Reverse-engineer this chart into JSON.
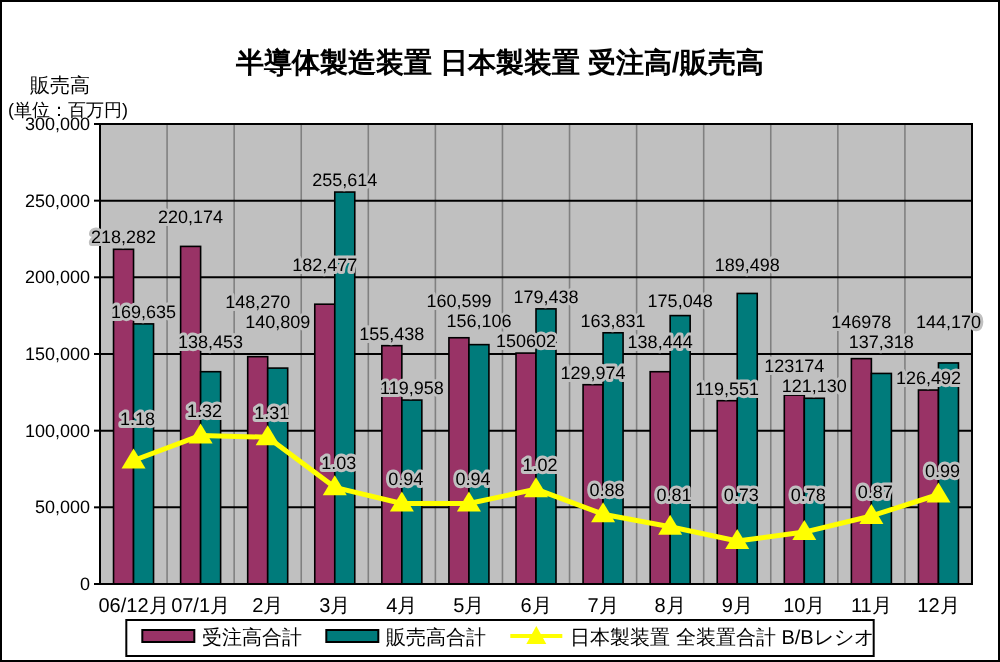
{
  "chart_data": {
    "type": "bar",
    "title": "半導体製造装置 日本製装置 受注高/販売高",
    "ylabel": "販売高",
    "annotations": [
      "(単位：百万円)"
    ],
    "categories": [
      "06/12月",
      "07/1月",
      "2月",
      "3月",
      "4月",
      "5月",
      "6月",
      "7月",
      "8月",
      "9月",
      "10月",
      "11月",
      "12月"
    ],
    "series": [
      {
        "name": "受注高合計",
        "color": "#993366",
        "values": [
          218282,
          220174,
          148270,
          182477,
          155438,
          160599,
          150602,
          129974,
          138444,
          119551,
          123174,
          146978,
          126492
        ],
        "value_labels": [
          "218,282",
          "220,174",
          "148,270",
          "182,477",
          "155,438",
          "160,599",
          "150602",
          "129,974",
          "138,444",
          "119,551",
          "123174",
          "146978",
          "126,492"
        ]
      },
      {
        "name": "販売高合計",
        "color": "#007b7b",
        "values": [
          169635,
          138453,
          140809,
          255614,
          119958,
          156106,
          179438,
          163831,
          175048,
          189498,
          121130,
          137318,
          144170
        ],
        "value_labels": [
          "169,635",
          "138,453",
          "140,809",
          "255,614",
          "119,958",
          "156,106",
          "179,438",
          "163,831",
          "175,048",
          "189,498",
          "121,130",
          "137,318",
          "144,170"
        ]
      },
      {
        "name": "日本製装置 全装置合計 B/Bレシオ",
        "type": "line",
        "axis": "y2",
        "color": "#ffff00",
        "marker": "triangle",
        "values": [
          1.18,
          1.32,
          1.31,
          1.03,
          0.94,
          0.94,
          1.02,
          0.88,
          0.81,
          0.73,
          0.78,
          0.87,
          0.99
        ],
        "value_labels": [
          "1.18",
          "1.32",
          "1.31",
          "1.03",
          "0.94",
          "0.94",
          "1.02",
          "0.88",
          "0.81",
          "0.73",
          "0.78",
          "0.87",
          "0.99"
        ]
      }
    ],
    "ylim": [
      0,
      300000
    ],
    "yticks": [
      {
        "value": 0,
        "label": "0"
      },
      {
        "value": 50000,
        "label": "50,000"
      },
      {
        "value": 100000,
        "label": "100,000"
      },
      {
        "value": 150000,
        "label": "150,000"
      },
      {
        "value": 200000,
        "label": "200,000"
      },
      {
        "value": 250000,
        "label": "250,000"
      },
      {
        "value": 300000,
        "label": "300,000"
      }
    ],
    "y2lim": [
      0.49,
      3.06
    ],
    "grid": true,
    "legend": "bottom"
  }
}
